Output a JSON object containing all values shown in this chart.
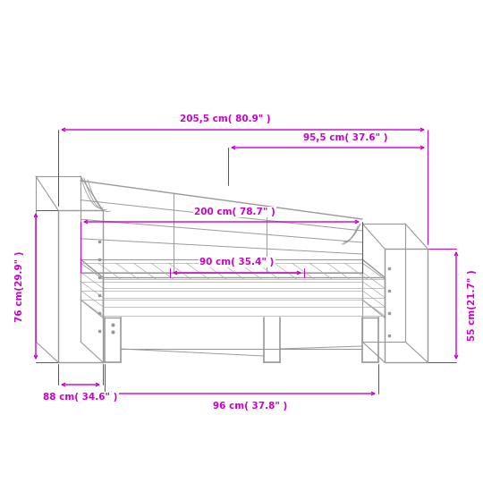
{
  "bg_color": "#ffffff",
  "line_color": "#999999",
  "dim_color": "#cc00cc",
  "dims": {
    "total_width_label": "205,5 cm( 80.9\" )",
    "right_panel_width_label": "95,5 cm( 37.6\" )",
    "inner_length_label": "200 cm( 78.7\" )",
    "inner_width_label": "90 cm( 35.4\" )",
    "total_height_label": "76 cm(29.9\" )",
    "right_height_label": "55 cm(21.7\" )",
    "front_depth_label": "88 cm( 34.6\" )",
    "base_width_label": "96 cm( 37.8\" )"
  }
}
